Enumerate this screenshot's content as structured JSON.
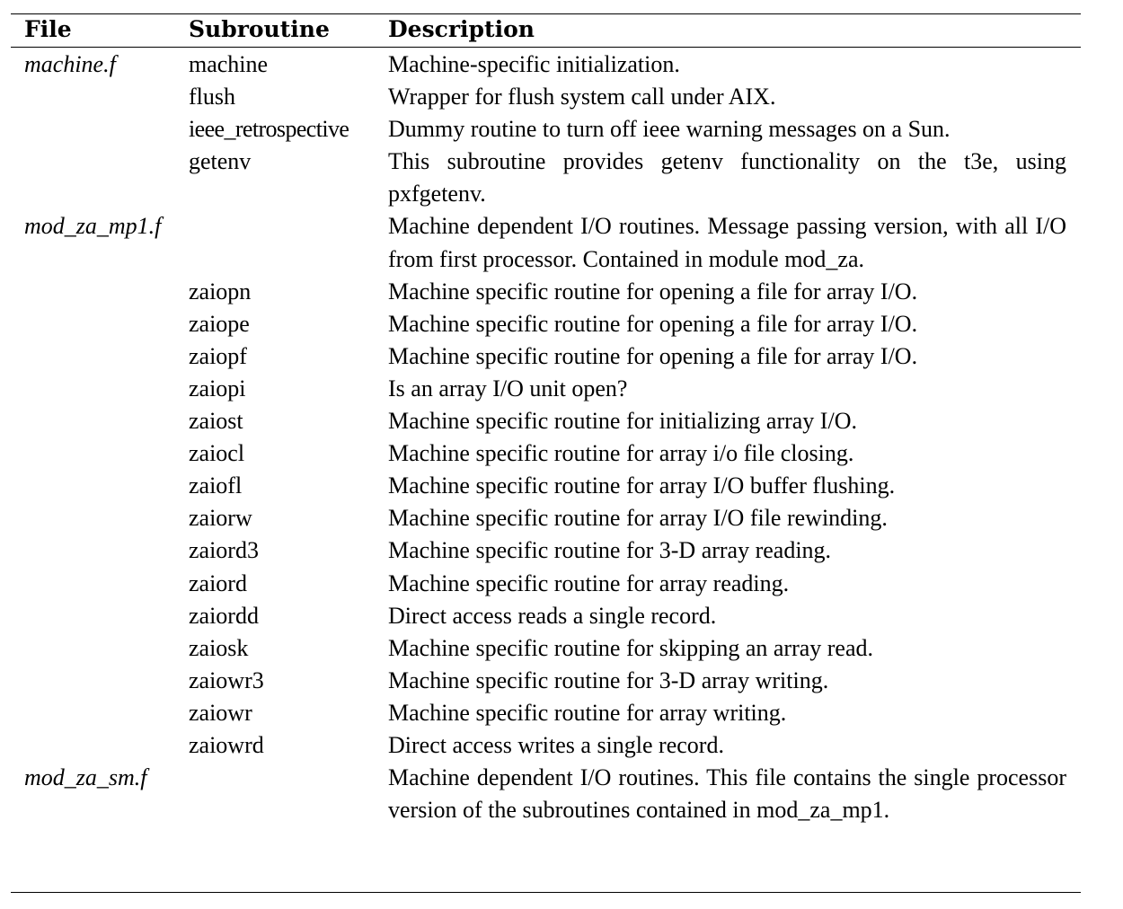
{
  "table": {
    "headers": {
      "file": "File",
      "subroutine": "Subroutine",
      "description": "Description"
    },
    "rows": [
      {
        "file": "machine.f",
        "subroutine": "machine",
        "description": "Machine-specific initialization."
      },
      {
        "file": "",
        "subroutine": "flush",
        "description": "Wrapper for flush system call under AIX."
      },
      {
        "file": "",
        "subroutine": "ieee_retrospective",
        "description": "Dummy routine to turn off ieee warning messages on a Sun."
      },
      {
        "file": "",
        "subroutine": "getenv",
        "description": "This subroutine provides getenv functionality on the t3e, using pxfgetenv."
      },
      {
        "file": "mod_za_mp1.f",
        "subroutine": "",
        "description": "Machine dependent I/O routines. Message passing version, with all I/O from first processor.  Contained in module mod_za."
      },
      {
        "file": "",
        "subroutine": "zaiopn",
        "description": "Machine specific routine for opening a file for array I/O."
      },
      {
        "file": "",
        "subroutine": "zaiope",
        "description": "Machine specific routine for opening a file for array I/O."
      },
      {
        "file": "",
        "subroutine": "zaiopf",
        "description": "Machine specific routine for opening a file for array I/O."
      },
      {
        "file": "",
        "subroutine": "zaiopi",
        "description": "Is an array I/O unit open?"
      },
      {
        "file": "",
        "subroutine": "zaiost",
        "description": "Machine specific routine for initializing array I/O."
      },
      {
        "file": "",
        "subroutine": "zaiocl",
        "description": "Machine specific routine for array i/o file closing."
      },
      {
        "file": "",
        "subroutine": "zaiofl",
        "description": "Machine specific routine for array I/O buffer flushing."
      },
      {
        "file": "",
        "subroutine": "zaiorw",
        "description": "Machine specific routine for array I/O file rewinding."
      },
      {
        "file": "",
        "subroutine": "zaiord3",
        "description": "Machine specific routine for 3-D array reading."
      },
      {
        "file": "",
        "subroutine": "zaiord",
        "description": "Machine specific routine for array reading."
      },
      {
        "file": "",
        "subroutine": "zaiordd",
        "description": "Direct access reads a single record."
      },
      {
        "file": "",
        "subroutine": "zaiosk",
        "description": "Machine specific routine for skipping an array read."
      },
      {
        "file": "",
        "subroutine": "zaiowr3",
        "description": "Machine specific routine for 3-D array writing."
      },
      {
        "file": "",
        "subroutine": "zaiowr",
        "description": "Machine specific routine for array writing."
      },
      {
        "file": "",
        "subroutine": "zaiowrd",
        "description": "Direct access writes a single record."
      },
      {
        "file": "mod_za_sm.f",
        "subroutine": "",
        "description": "Machine dependent I/O routines.  This file contains the single processor version of the subroutines contained in mod_za_mp1."
      }
    ]
  }
}
